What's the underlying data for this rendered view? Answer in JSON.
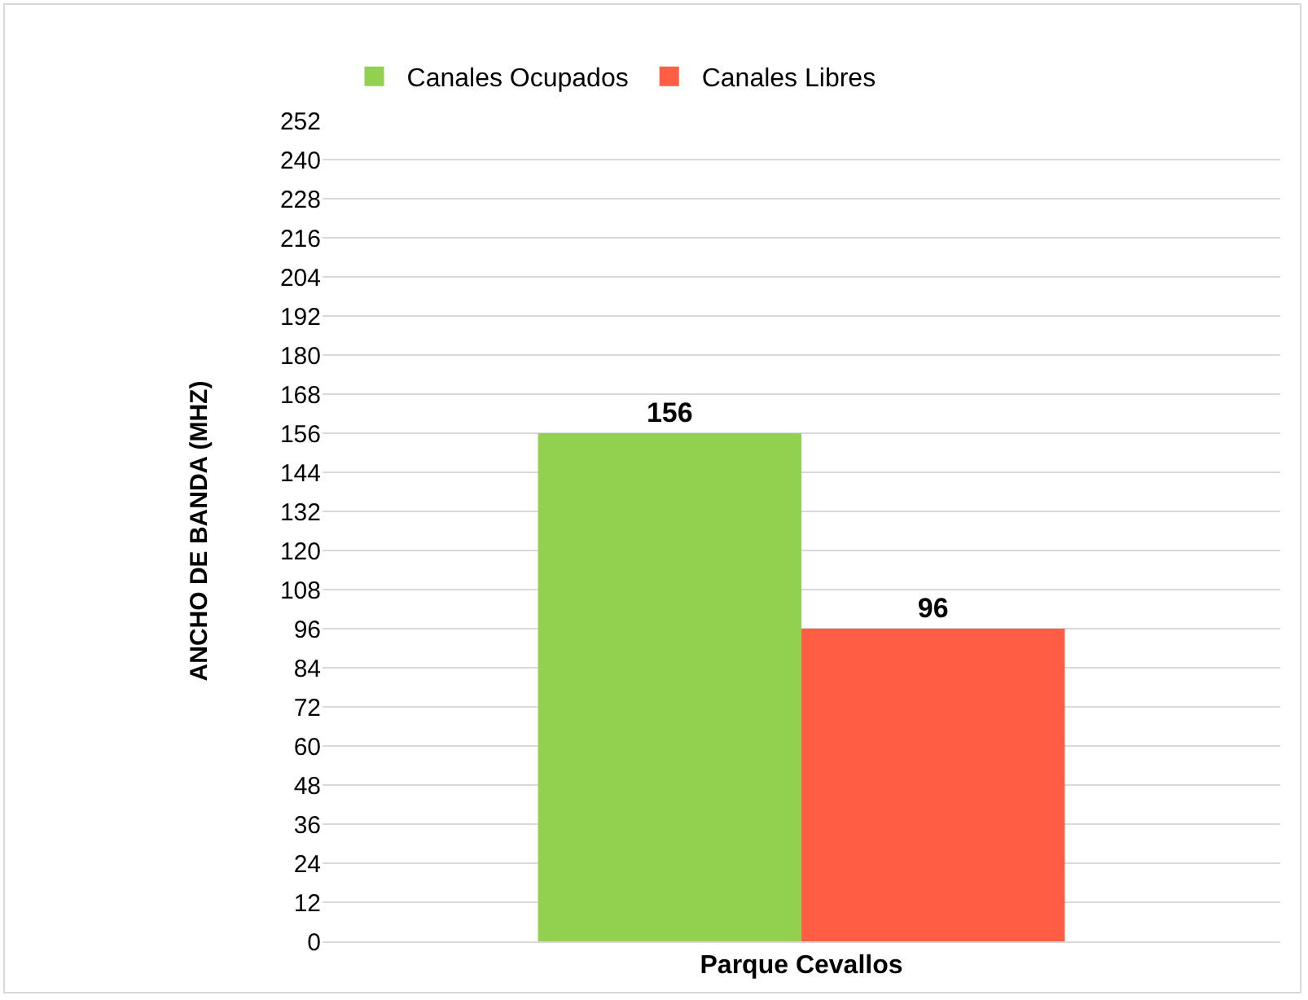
{
  "chart_data": {
    "type": "bar",
    "xlabel": "Parque Cevallos",
    "ylabel": "ANCHO DE BANDA (MHZ)",
    "categories": [
      null
    ],
    "series": [
      {
        "name": "Canales Ocupados",
        "color": "#92d050",
        "values": [
          156
        ]
      },
      {
        "name": "Canales Libres",
        "color": "#ff5e45",
        "values": [
          96
        ]
      }
    ],
    "ylim": [
      0,
      252
    ],
    "yticks": [
      0,
      12,
      24,
      36,
      48,
      60,
      72,
      84,
      96,
      108,
      120,
      132,
      144,
      156,
      168,
      180,
      192,
      204,
      216,
      228,
      240,
      252
    ],
    "grid": "y",
    "legend": "top left",
    "data_labels": true
  }
}
